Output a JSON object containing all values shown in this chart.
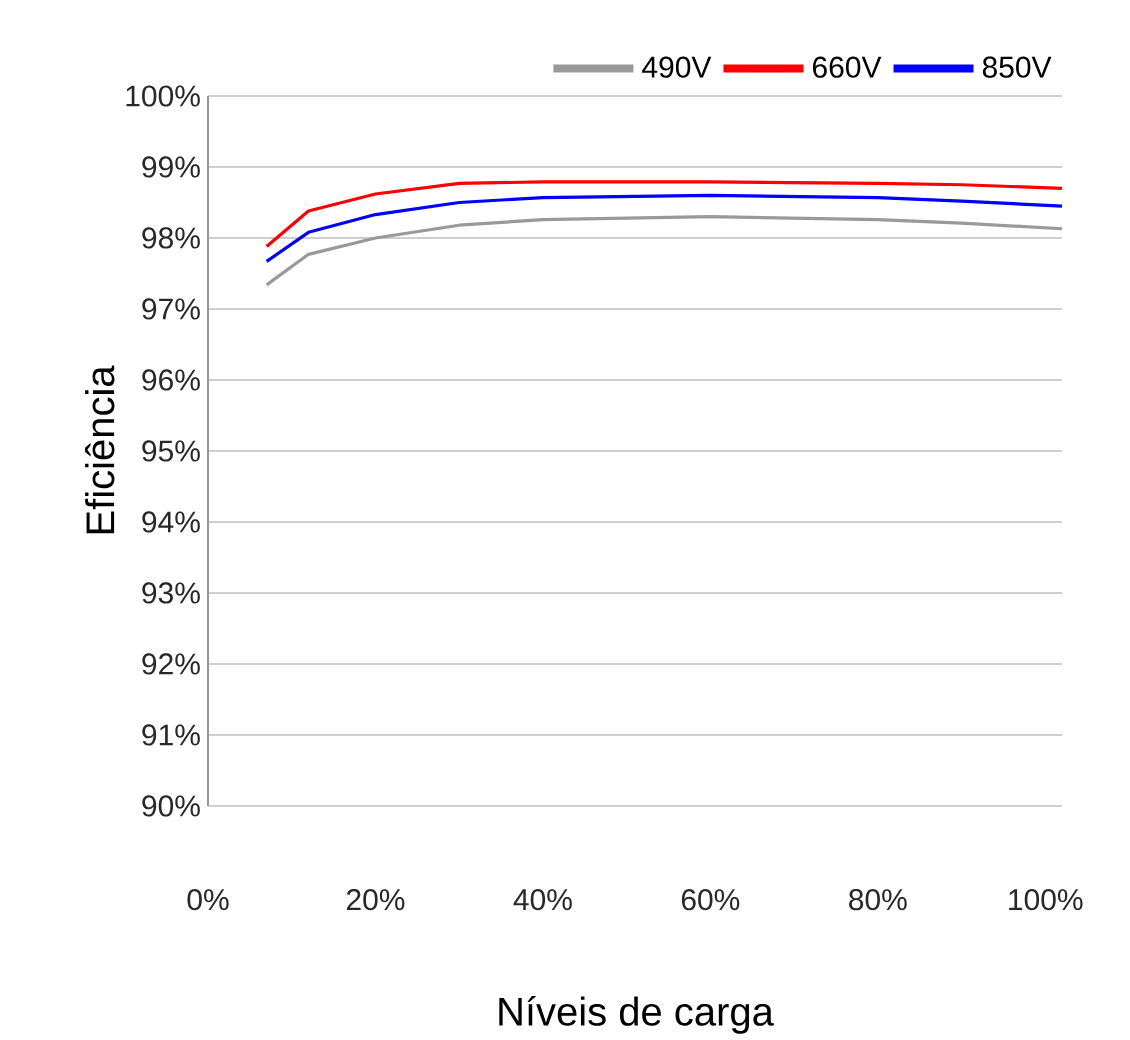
{
  "chart_data": {
    "type": "line",
    "xlabel": "Níveis de carga",
    "ylabel": "Eficiência",
    "x": [
      7,
      12,
      20,
      30,
      40,
      60,
      80,
      90,
      102
    ],
    "series": [
      {
        "name": "490V",
        "color": "#999999",
        "values": [
          97.34,
          97.77,
          98.0,
          98.18,
          98.26,
          98.3,
          98.26,
          98.21,
          98.13
        ]
      },
      {
        "name": "660V",
        "color": "#ff0000",
        "values": [
          97.88,
          98.38,
          98.62,
          98.77,
          98.79,
          98.79,
          98.77,
          98.75,
          98.7
        ]
      },
      {
        "name": "850V",
        "color": "#0000ff",
        "values": [
          97.67,
          98.08,
          98.33,
          98.5,
          98.57,
          98.6,
          98.57,
          98.52,
          98.45
        ]
      }
    ],
    "xlim": [
      0,
      102
    ],
    "ylim": [
      90,
      100
    ],
    "xticks": [
      {
        "value": 0,
        "label": "0%"
      },
      {
        "value": 20,
        "label": "20%"
      },
      {
        "value": 40,
        "label": "40%"
      },
      {
        "value": 60,
        "label": "60%"
      },
      {
        "value": 80,
        "label": "80%"
      },
      {
        "value": 100,
        "label": "100%"
      }
    ],
    "yticks": [
      {
        "value": 90,
        "label": "90%"
      },
      {
        "value": 91,
        "label": "91%"
      },
      {
        "value": 92,
        "label": "92%"
      },
      {
        "value": 93,
        "label": "93%"
      },
      {
        "value": 94,
        "label": "94%"
      },
      {
        "value": 95,
        "label": "95%"
      },
      {
        "value": 96,
        "label": "96%"
      },
      {
        "value": 97,
        "label": "97%"
      },
      {
        "value": 98,
        "label": "98%"
      },
      {
        "value": 99,
        "label": "99%"
      },
      {
        "value": 100,
        "label": "100%"
      }
    ],
    "grid": "y",
    "legend": "top right",
    "marker": "none",
    "line_style": "solid"
  }
}
